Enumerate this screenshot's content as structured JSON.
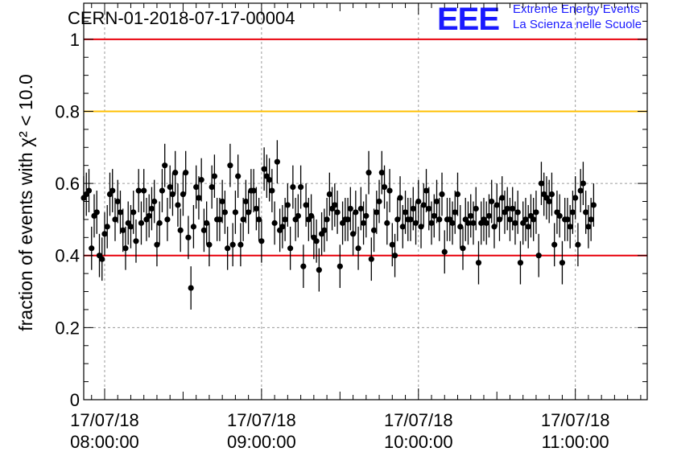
{
  "title": "CERN-01-2018-07-17-00004",
  "logo": {
    "mark": "EEE",
    "line1": "Extreme Energy Events",
    "line2": "La Scienza nelle Scuole"
  },
  "colors": {
    "upper_threshold": "#e8000b",
    "warning_threshold": "#ffbf00",
    "lower_threshold": "#e8000b",
    "points": "#000000",
    "grid": "#9a9a9a"
  },
  "chart_data": {
    "type": "scatter",
    "title": "CERN-01-2018-07-17-00004",
    "xlabel": "",
    "ylabel": "fraction of events with χ² < 10.0",
    "ylim": [
      0,
      1.1
    ],
    "xlim": [
      "2018-07-17 07:52:00",
      "2018-07-17 11:27:30"
    ],
    "x_ticks": [
      {
        "date": "17/07/18",
        "time": "08:00:00"
      },
      {
        "date": "17/07/18",
        "time": "09:00:00"
      },
      {
        "date": "17/07/18",
        "time": "10:00:00"
      },
      {
        "date": "17/07/18",
        "time": "11:00:00"
      }
    ],
    "y_ticks": [
      "0",
      "0.2",
      "0.4",
      "0.6",
      "0.8",
      "1"
    ],
    "grid": true,
    "reference_lines": [
      {
        "y": 1.0,
        "color": "#e8000b"
      },
      {
        "y": 0.8,
        "color": "#ffbf00"
      },
      {
        "y": 0.4,
        "color": "#e8000b"
      }
    ],
    "x_start": "2018-07-17 07:52:00",
    "x_step_minutes": 1,
    "error": 0.06,
    "values": [
      0.56,
      0.57,
      0.58,
      0.42,
      0.51,
      0.52,
      0.4,
      0.39,
      0.46,
      0.48,
      0.57,
      0.58,
      0.5,
      0.55,
      0.52,
      0.47,
      0.42,
      0.49,
      0.48,
      0.52,
      0.44,
      0.58,
      0.49,
      0.58,
      0.5,
      0.51,
      0.53,
      0.55,
      0.43,
      0.49,
      0.58,
      0.65,
      0.5,
      0.59,
      0.57,
      0.63,
      0.54,
      0.47,
      0.57,
      0.63,
      0.45,
      0.31,
      0.48,
      0.59,
      0.56,
      0.61,
      0.47,
      0.49,
      0.43,
      0.59,
      0.62,
      0.5,
      0.5,
      0.55,
      0.52,
      0.42,
      0.65,
      0.43,
      0.52,
      0.62,
      0.43,
      0.5,
      0.55,
      0.52,
      0.58,
      0.58,
      0.53,
      0.5,
      0.44,
      0.64,
      0.62,
      0.61,
      0.58,
      0.49,
      0.66,
      0.47,
      0.48,
      0.5,
      0.54,
      0.42,
      0.59,
      0.5,
      0.51,
      0.59,
      0.37,
      0.54,
      0.5,
      0.51,
      0.45,
      0.44,
      0.36,
      0.46,
      0.47,
      0.5,
      0.57,
      0.53,
      0.54,
      0.52,
      0.37,
      0.49,
      0.5,
      0.5,
      0.53,
      0.46,
      0.52,
      0.42,
      0.53,
      0.49,
      0.51,
      0.63,
      0.39,
      0.47,
      0.52,
      0.55,
      0.63,
      0.59,
      0.49,
      0.58,
      0.43,
      0.4,
      0.5,
      0.56,
      0.48,
      0.52,
      0.5,
      0.5,
      0.53,
      0.49,
      0.55,
      0.48,
      0.54,
      0.58,
      0.53,
      0.49,
      0.51,
      0.55,
      0.5,
      0.57,
      0.41,
      0.5,
      0.5,
      0.49,
      0.52,
      0.57,
      0.48,
      0.42,
      0.5,
      0.49,
      0.51,
      0.49,
      0.53,
      0.38,
      0.49,
      0.5,
      0.49,
      0.51,
      0.55,
      0.48,
      0.54,
      0.5,
      0.56,
      0.52,
      0.53,
      0.5,
      0.53,
      0.49,
      0.52,
      0.38,
      0.49,
      0.5,
      0.48,
      0.51,
      0.5,
      0.52,
      0.4,
      0.6,
      0.57,
      0.56,
      0.55,
      0.57,
      0.43,
      0.52,
      0.51,
      0.38,
      0.5,
      0.5,
      0.48,
      0.52,
      0.56,
      0.43,
      0.58,
      0.6,
      0.52,
      0.48,
      0.5,
      0.54
    ]
  }
}
